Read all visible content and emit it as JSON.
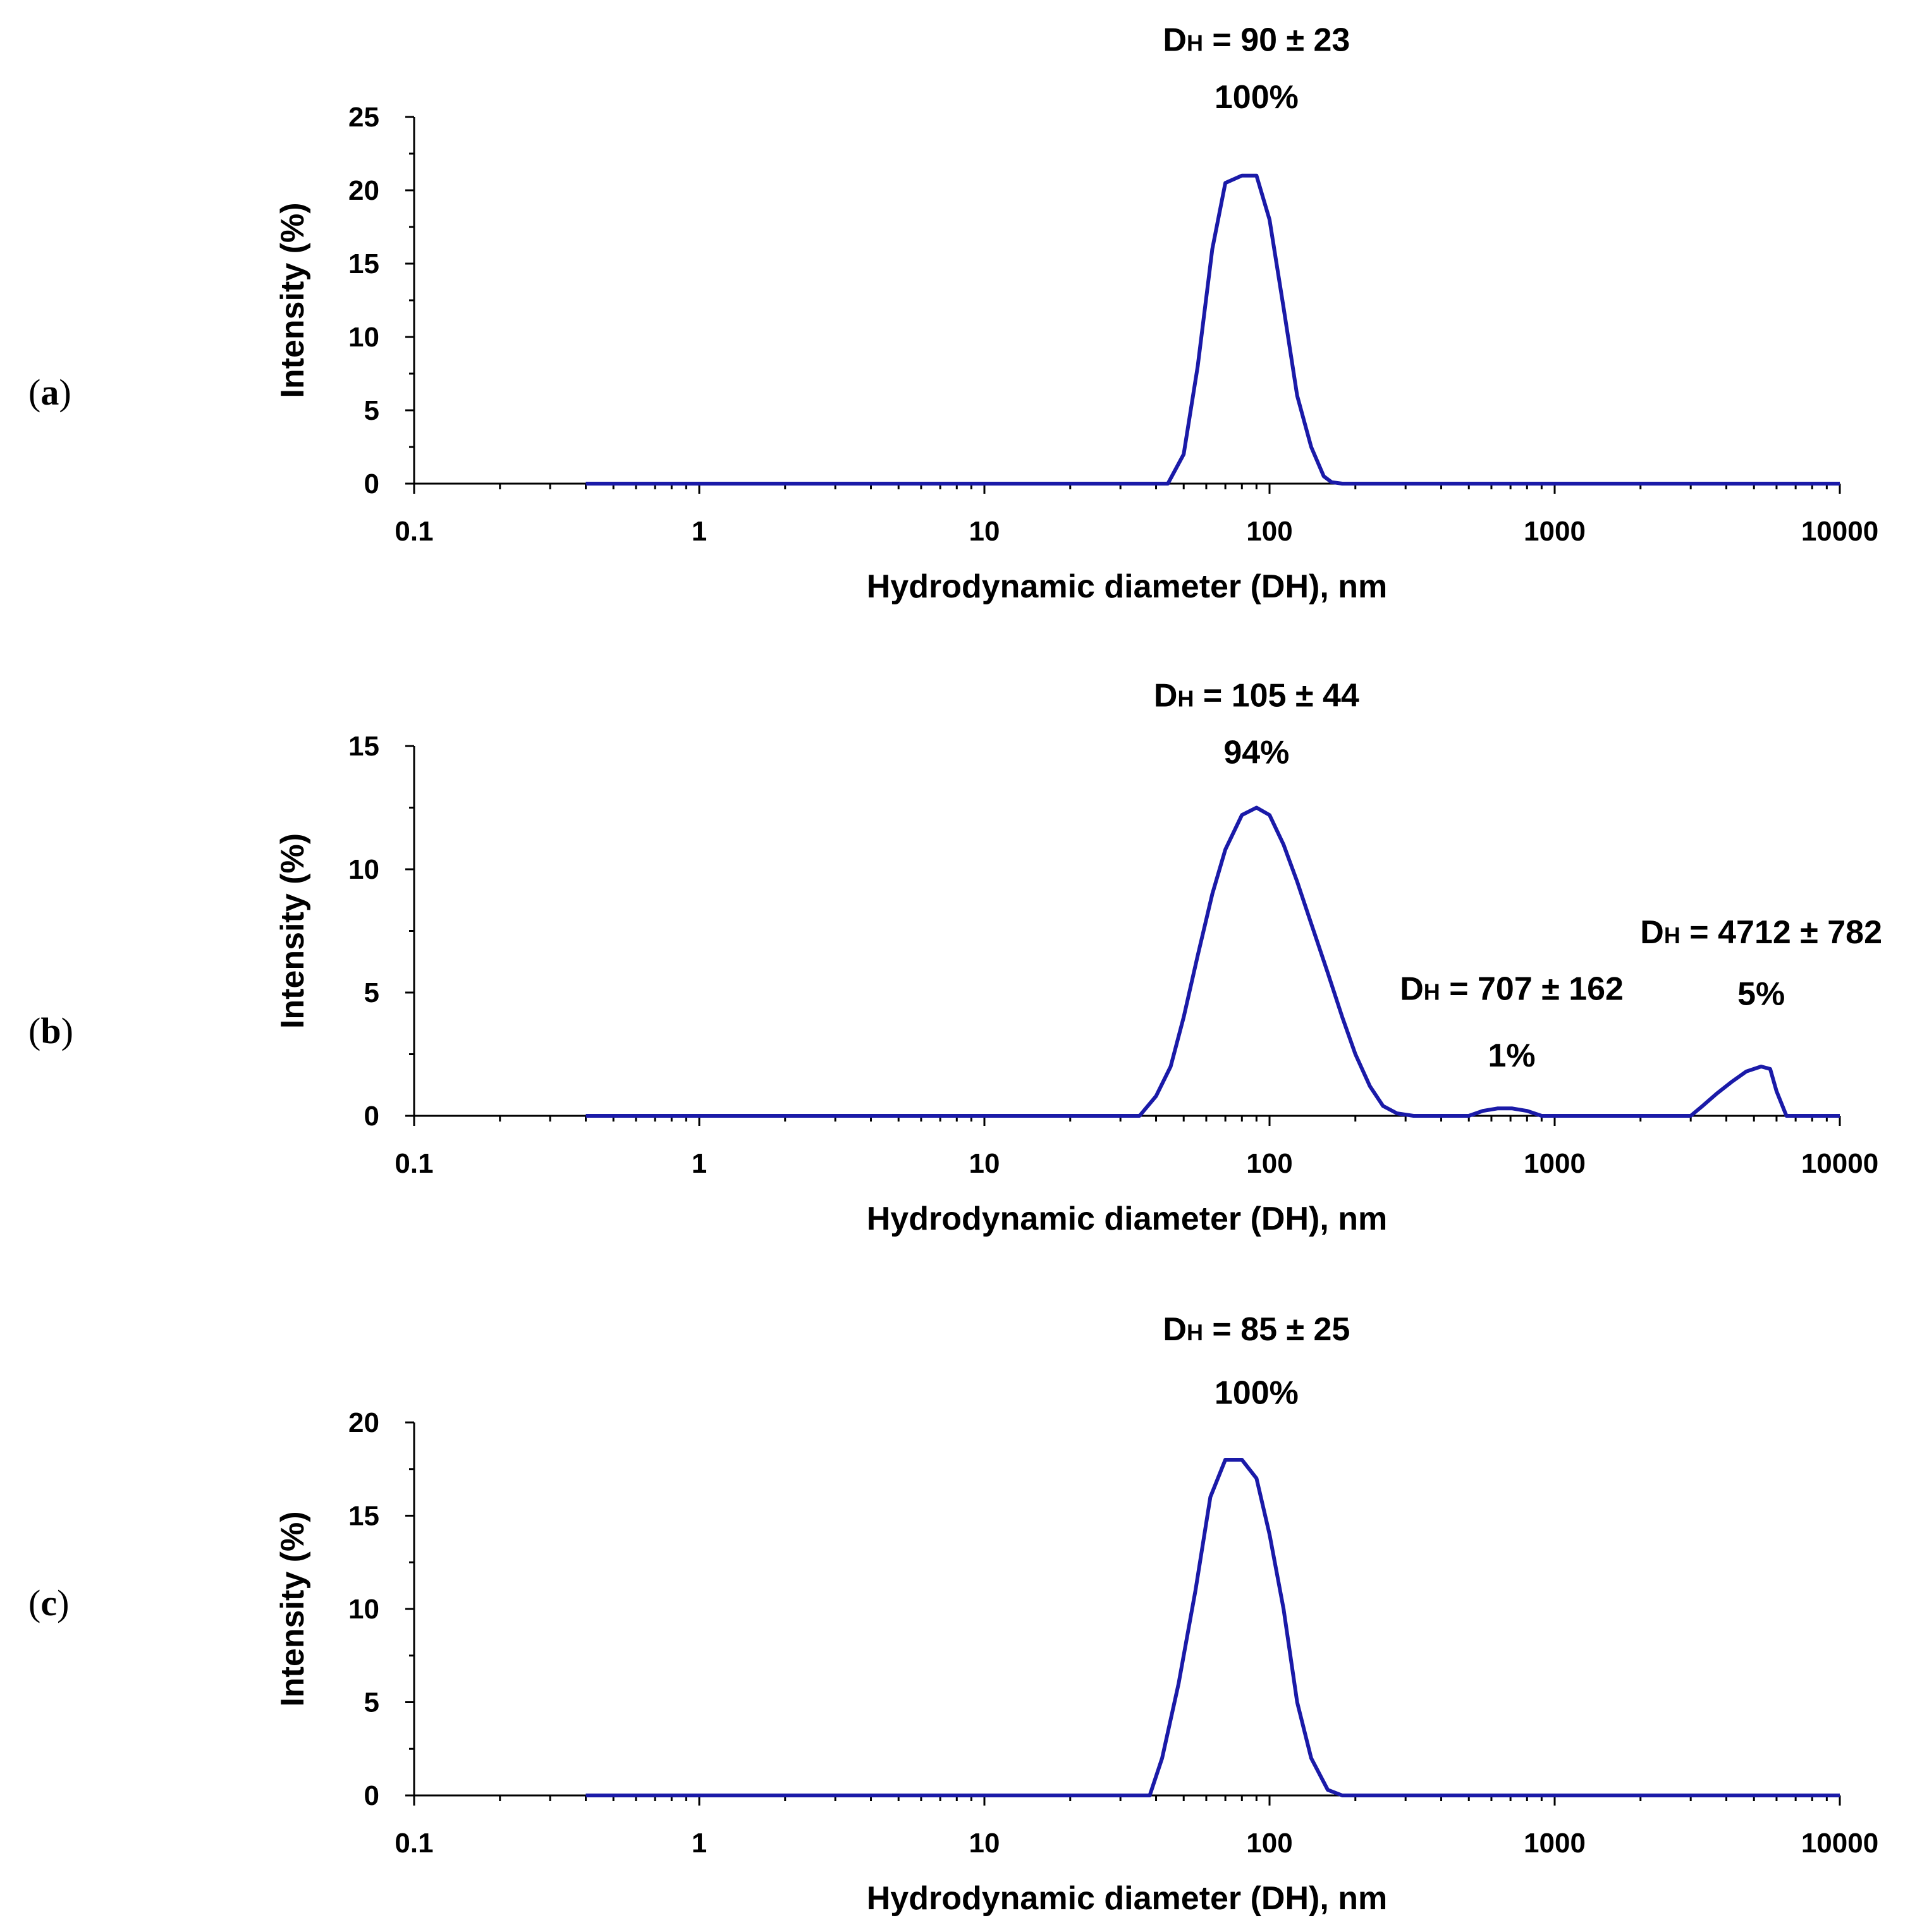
{
  "chart_data": [
    {
      "panel_label": "a",
      "type": "line",
      "xscale": "log",
      "xlim": [
        0.1,
        10000
      ],
      "ylim": [
        0,
        25
      ],
      "yticks": [
        0,
        5,
        10,
        15,
        20,
        25
      ],
      "yminor": 2.5,
      "xticks": [
        "0.1",
        "1",
        "10",
        "100",
        "1000",
        "10000"
      ],
      "xlabel": "Hydrodynamic diameter (DH), nm",
      "ylabel": "Intensity (%)",
      "color": "#1a1aa8",
      "series": [
        {
          "name": "Intensity",
          "x": [
            0.4,
            44,
            50,
            56,
            63,
            70,
            80,
            90,
            100,
            112,
            125,
            140,
            155,
            165,
            180,
            300,
            1000,
            10000
          ],
          "y": [
            0,
            0,
            2,
            8,
            16,
            20.5,
            21,
            21,
            18,
            12,
            6,
            2.5,
            0.5,
            0.1,
            0,
            0,
            0,
            0
          ]
        }
      ],
      "annotations": [
        {
          "line1_main": "D",
          "line1_sub": "H",
          "line1_rest": " = 90 ± 23",
          "line2": "100%",
          "x": 90,
          "y": 29.5,
          "y2": 25.6
        }
      ]
    },
    {
      "panel_label": "b",
      "type": "line",
      "xscale": "log",
      "xlim": [
        0.1,
        10000
      ],
      "ylim": [
        0,
        15
      ],
      "yticks": [
        0,
        5,
        10,
        15
      ],
      "yminor": 2.5,
      "xticks": [
        "0.1",
        "1",
        "10",
        "100",
        "1000",
        "10000"
      ],
      "xlabel": "Hydrodynamic diameter (DH), nm",
      "ylabel": "Intensity (%)",
      "color": "#1a1aa8",
      "series": [
        {
          "name": "Intensity",
          "x": [
            0.4,
            35,
            40,
            45,
            50,
            56,
            63,
            70,
            80,
            90,
            100,
            112,
            125,
            140,
            160,
            180,
            200,
            225,
            250,
            280,
            320,
            500,
            560,
            630,
            710,
            800,
            900,
            1100,
            3000,
            3300,
            3700,
            4200,
            4700,
            5300,
            5700,
            6000,
            6500,
            8000,
            10000
          ],
          "y": [
            0,
            0,
            0.8,
            2,
            4,
            6.5,
            9,
            10.8,
            12.2,
            12.5,
            12.2,
            11,
            9.5,
            7.8,
            5.8,
            4,
            2.5,
            1.2,
            0.4,
            0.1,
            0,
            0,
            0.2,
            0.3,
            0.3,
            0.2,
            0,
            0,
            0,
            0.4,
            0.9,
            1.4,
            1.8,
            2,
            1.9,
            1,
            0,
            0,
            0
          ]
        }
      ],
      "annotations": [
        {
          "line1_main": "D",
          "line1_sub": "H",
          "line1_rest": " = 105 ± 44",
          "line2": "94%",
          "x": 90,
          "y": 16.6,
          "y2": 14.3
        },
        {
          "line1_main": "D",
          "line1_sub": "H",
          "line1_rest": " = 707 ± 162",
          "line2": "1%",
          "x": 707,
          "y": 4.7,
          "y2": 2.0
        },
        {
          "line1_main": "D",
          "line1_sub": "H",
          "line1_rest": " = 4712 ± 782",
          "line2": "5%",
          "x": 5300,
          "y": 7.0,
          "y2": 4.5
        }
      ]
    },
    {
      "panel_label": "c",
      "type": "line",
      "xscale": "log",
      "xlim": [
        0.1,
        10000
      ],
      "ylim": [
        0,
        20
      ],
      "yticks": [
        0,
        5,
        10,
        15,
        20
      ],
      "yminor": 2.5,
      "xticks": [
        "0.1",
        "1",
        "10",
        "100",
        "1000",
        "10000"
      ],
      "xlabel": "Hydrodynamic diameter (DH), nm",
      "ylabel": "Intensity (%)",
      "color": "#1a1aa8",
      "series": [
        {
          "name": "Intensity",
          "x": [
            0.4,
            38,
            42,
            48,
            55,
            62,
            70,
            80,
            90,
            100,
            112,
            125,
            140,
            160,
            180,
            300,
            1000,
            10000
          ],
          "y": [
            0,
            0,
            2,
            6,
            11,
            16,
            18,
            18,
            17,
            14,
            10,
            5,
            2,
            0.3,
            0,
            0,
            0,
            0
          ]
        }
      ],
      "annotations": [
        {
          "line1_main": "D",
          "line1_sub": "H",
          "line1_rest": " = 85 ± 25",
          "line2": "100%",
          "x": 90,
          "y": 24.4,
          "y2": 21.0
        }
      ]
    }
  ]
}
